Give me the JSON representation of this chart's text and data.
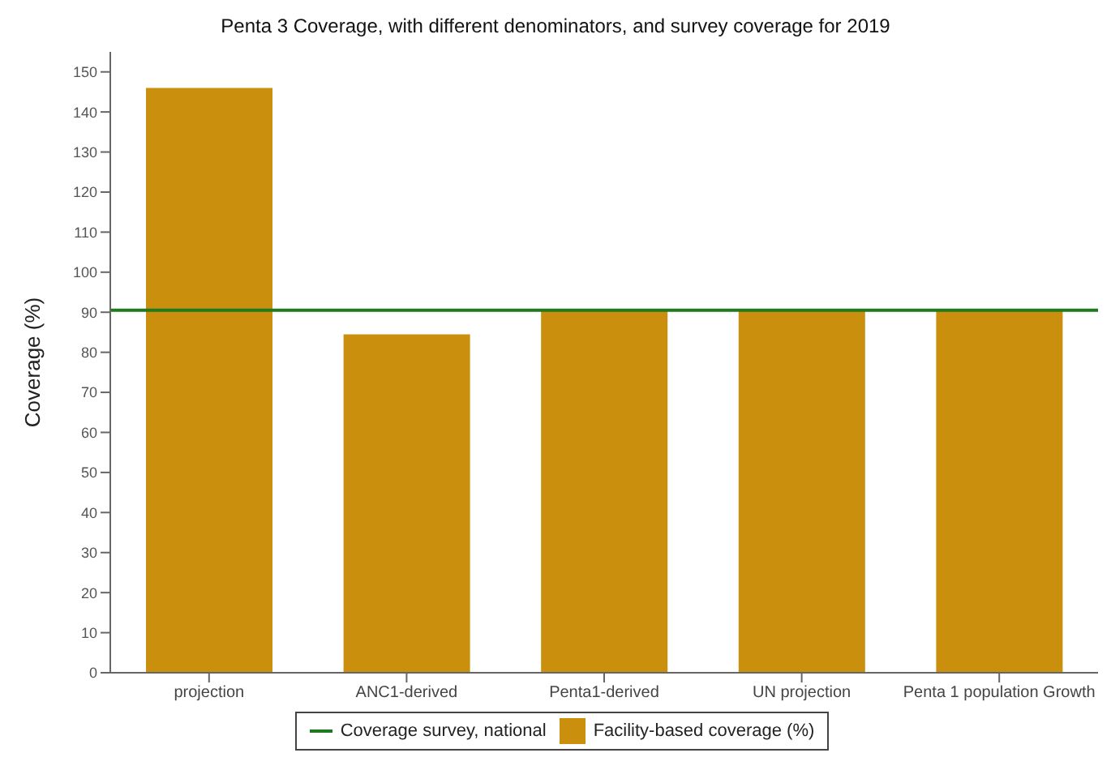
{
  "chart_data": {
    "type": "bar",
    "title": "Penta 3 Coverage, with different denominators, and survey coverage for 2019",
    "ylabel": "Coverage (%)",
    "categories": [
      "projection",
      "ANC1-derived",
      "Penta1-derived",
      "UN projection",
      "Penta 1 population Growth"
    ],
    "series": [
      {
        "name": "Facility-based coverage (%)",
        "color": "#ca8f0c",
        "values": [
          146,
          84.5,
          90.5,
          90.5,
          90.5
        ]
      }
    ],
    "ref_lines": [
      {
        "axis": "y",
        "value": 90.5,
        "label": "Coverage survey, national",
        "color": "#1e7a1e"
      }
    ],
    "ylim": [
      0,
      155
    ],
    "yticks": [
      0,
      10,
      20,
      30,
      40,
      50,
      60,
      70,
      80,
      90,
      100,
      110,
      120,
      130,
      140,
      150
    ],
    "grid": false,
    "legend": "bottom"
  }
}
